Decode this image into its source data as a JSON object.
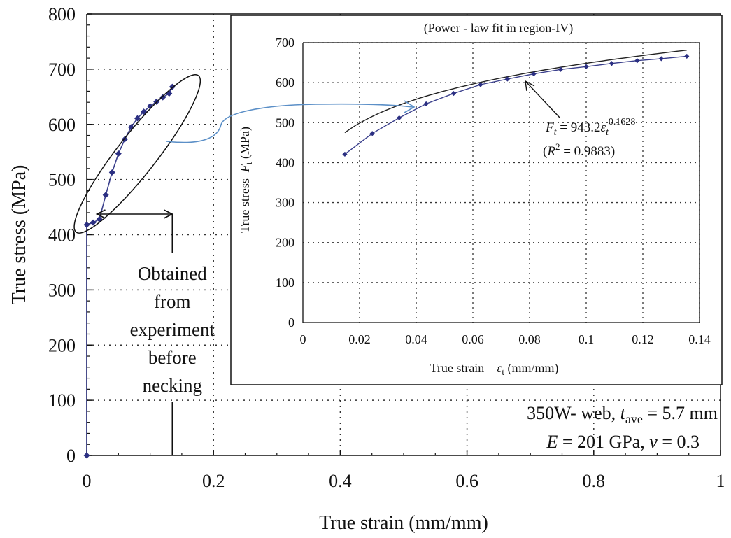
{
  "chart_data": [
    {
      "type": "scatter",
      "xlabel": "True strain (mm/mm)",
      "ylabel": "True stress (MPa)",
      "xlim": [
        0,
        1
      ],
      "ylim": [
        0,
        800
      ],
      "x_ticks": [
        "0",
        "0.2",
        "0.4",
        "0.6",
        "0.8",
        "1"
      ],
      "y_ticks": [
        "0",
        "100",
        "200",
        "300",
        "400",
        "500",
        "600",
        "700",
        "800"
      ],
      "grid": "dotted",
      "series": [
        {
          "x": [
            0,
            0,
            0.01,
            0.02,
            0.03,
            0.04,
            0.05,
            0.06,
            0.07,
            0.08,
            0.09,
            0.1,
            0.11,
            0.12,
            0.13,
            0.135
          ],
          "y": [
            0,
            418,
            422,
            428,
            472,
            513,
            547,
            573,
            595,
            611,
            623,
            633,
            641,
            649,
            656,
            668
          ]
        }
      ],
      "annotation": {
        "lines": [
          "Obtained",
          "from",
          "experiment",
          "before",
          "necking"
        ]
      },
      "info_text": {
        "line1_prefix": "350W- web,",
        "line1_t": "t",
        "line1_sub": "ave",
        "line1_suffix": " = 5.7 mm",
        "line2_E": "E",
        "line2_mid": " = 201 GPa, ",
        "line2_nu": "ν",
        "line2_suffix": " = 0.3"
      }
    },
    {
      "type": "scatter",
      "title": "(Power - law fit in region-IV)",
      "xlabel_prefix": "True strain – ",
      "xlabel_var": "ε",
      "xlabel_sub": "t",
      "xlabel_suffix": " (mm/mm)",
      "ylabel_prefix": "True stress–",
      "ylabel_var": "F",
      "ylabel_sub": "t",
      "ylabel_suffix": " (MPa)",
      "xlim": [
        0,
        0.14
      ],
      "ylim": [
        0,
        700
      ],
      "x_ticks": [
        "0",
        "0.02",
        "0.04",
        "0.06",
        "0.08",
        "0.1",
        "0.12",
        "0.14"
      ],
      "y_ticks": [
        "0",
        "100",
        "200",
        "300",
        "400",
        "500",
        "600",
        "700"
      ],
      "grid": "dotted",
      "series": [
        {
          "x": [
            0.0148,
            0.0245,
            0.034,
            0.0435,
            0.0532,
            0.0627,
            0.0722,
            0.0815,
            0.091,
            0.1,
            0.109,
            0.118,
            0.1265,
            0.1355
          ],
          "y": [
            421,
            473,
            512,
            547,
            573,
            595,
            609,
            622,
            633,
            640,
            648,
            655,
            660,
            666
          ]
        }
      ],
      "fit": {
        "coef": 943.2,
        "exp": 0.1628,
        "eq_F": "F",
        "eq_sub": "t",
        "eq_mid": " = 943.2",
        "eq_eps": "ε",
        "eq_eps_sub": "t",
        "eq_exp": "0.1628",
        "r2_open": "(",
        "r2_R": "R",
        "r2_sup": "2",
        "r2_rest": " = 0.9883)"
      }
    }
  ],
  "colors": {
    "marker": "#2b2f82",
    "curve": "#3a3f8c",
    "connector": "#5b8fc7",
    "grid": "#333333",
    "axis": "#111111"
  }
}
